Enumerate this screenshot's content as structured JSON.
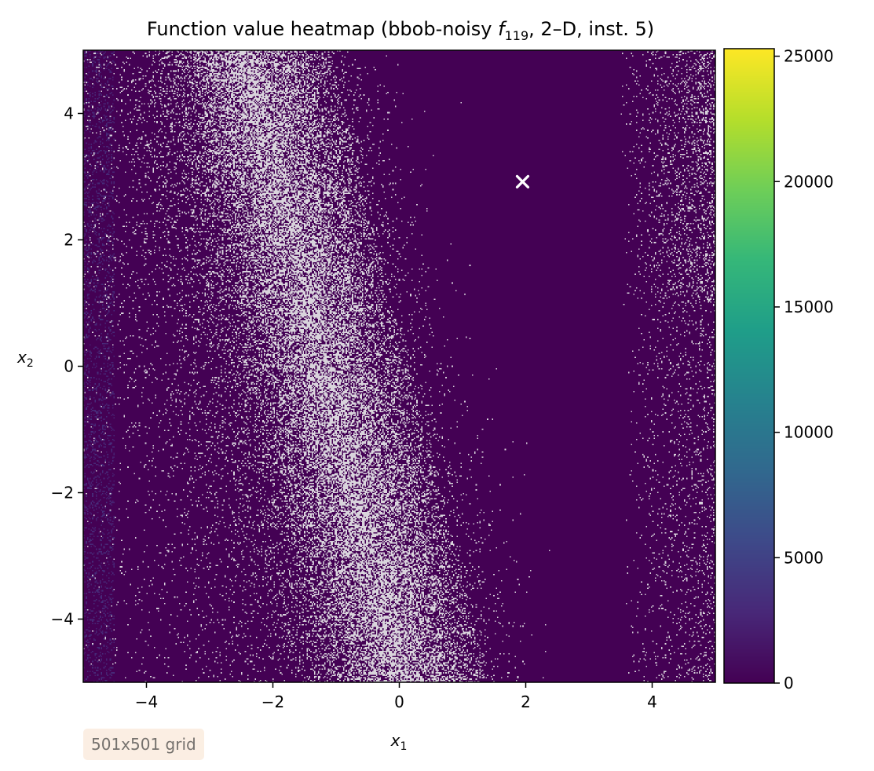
{
  "chart_data": {
    "type": "heatmap",
    "title": {
      "prefix": "Function value heatmap (bbob-noisy ",
      "func_symbol": "f",
      "func_subscript": "119",
      "suffix": ", 2–D, inst. 5)"
    },
    "xlabel": {
      "symbol": "x",
      "subscript": "1"
    },
    "ylabel": {
      "symbol": "x",
      "subscript": "2"
    },
    "xlim": [
      -5,
      5
    ],
    "ylim": [
      -5,
      5
    ],
    "x_ticks": [
      -4,
      -2,
      0,
      2,
      4
    ],
    "y_ticks": [
      -4,
      -2,
      0,
      2,
      4
    ],
    "x_tick_labels": [
      "−4",
      "−2",
      "0",
      "2",
      "4"
    ],
    "y_tick_labels": [
      "−4",
      "−2",
      "0",
      "2",
      "4"
    ],
    "grid": false,
    "colormap": "viridis",
    "colorbar": {
      "range": [
        0,
        25300
      ],
      "ticks": [
        0,
        5000,
        10000,
        15000,
        20000,
        25000
      ],
      "tick_labels": [
        "0",
        "5000",
        "10000",
        "15000",
        "20000",
        "25000"
      ]
    },
    "grid_size": [
      501,
      501
    ],
    "noise_band": {
      "description_free": true,
      "center_line": {
        "x_at_y_top": -2.3,
        "x_at_y_bottom": 0.2
      },
      "dense_halfwidth": 1.0,
      "edge_speckle_x_min": 3.5
    },
    "optimum_marker": {
      "x": 1.95,
      "y": 2.92,
      "symbol": "×",
      "color": "#ffffff"
    },
    "background_color": "#440154",
    "speckle_color": "#d9d4dc"
  },
  "annotation": {
    "grid_label": "501x501 grid"
  }
}
